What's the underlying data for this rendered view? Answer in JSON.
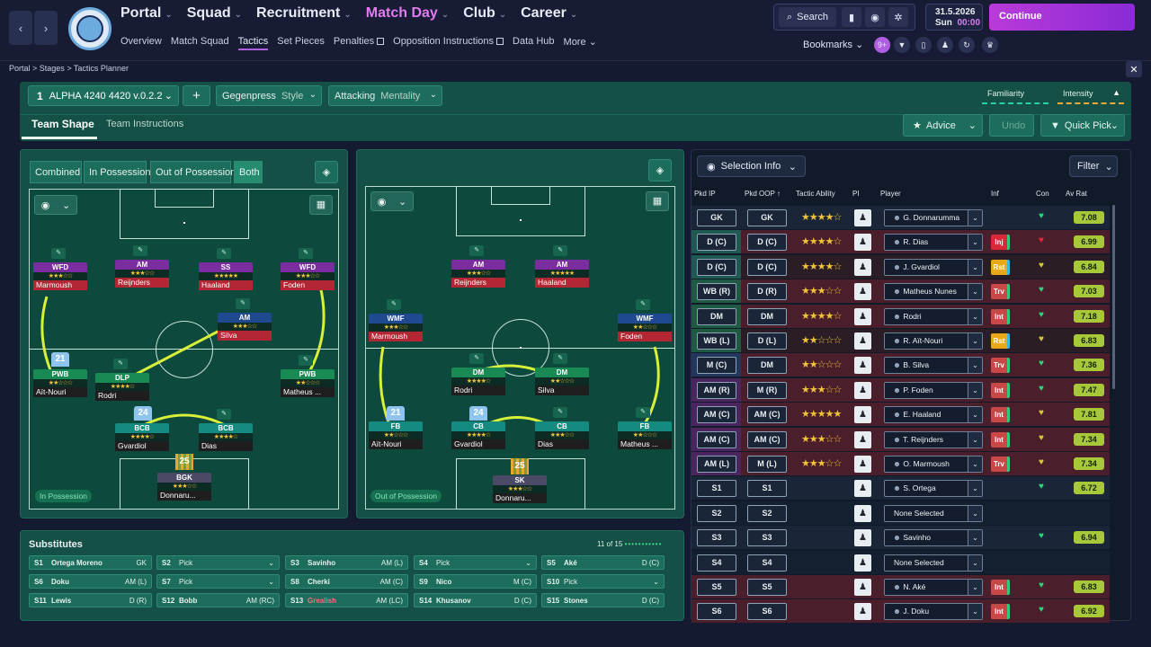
{
  "topbar": {
    "main_nav": [
      {
        "label": "Portal"
      },
      {
        "label": "Squad"
      },
      {
        "label": "Recruitment"
      },
      {
        "label": "Match Day"
      },
      {
        "label": "Club"
      },
      {
        "label": "Career"
      }
    ],
    "sub_nav": [
      "Overview",
      "Match Squad",
      "Tactics",
      "Set Pieces",
      "Penalties",
      "Opposition Instructions",
      "Data Hub",
      "More"
    ],
    "search_label": "Search",
    "date": "31.5.2026",
    "day": "Sun",
    "time": "00:00",
    "continue_label": "Continue",
    "bookmarks_label": "Bookmarks",
    "notif_count": "9+",
    "crest_text": "MANCHESTER CITY"
  },
  "breadcrumb": [
    "Portal",
    "Stages",
    "Tactics Planner"
  ],
  "planner": {
    "formation_num": "1",
    "formation_name": "ALPHA 4240 4420 v.0.2.2",
    "plus": "+",
    "style_value": "Gegenpress",
    "style_label": "Style",
    "mentality_value": "Attacking",
    "mentality_label": "Mentality",
    "familiarity_label": "Familiarity",
    "intensity_label": "Intensity",
    "tabs": [
      "Team Shape",
      "Team Instructions"
    ],
    "advice_label": "Advice",
    "undo_label": "Undo",
    "quick_pick_label": "Quick Pick"
  },
  "shape_modes": [
    "Combined",
    "In Possession",
    "Out of Possession",
    "Both"
  ],
  "in_possession": {
    "badge": "In Possession",
    "players": [
      {
        "role": "WFD",
        "stars": "★★★☆☆",
        "name": "Marmoush",
        "color": "#7b2c9f"
      },
      {
        "role": "AM",
        "stars": "★★★☆☆",
        "name": "Reijnders",
        "color": "#7b2c9f"
      },
      {
        "role": "SS",
        "stars": "★★★★★",
        "name": "Haaland",
        "color": "#7b2c9f"
      },
      {
        "role": "WFD",
        "stars": "★★★☆☆",
        "name": "Foden",
        "color": "#7b2c9f"
      },
      {
        "role": "AM",
        "stars": "★★★☆☆",
        "name": "Silva",
        "color": "#1f4a8f"
      },
      {
        "role": "PWB",
        "stars": "★★☆☆☆",
        "name": "Aït-Nouri",
        "color": "#1a8a55"
      },
      {
        "role": "DLP",
        "stars": "★★★★☆",
        "name": "Rodri",
        "color": "#1a8a55"
      },
      {
        "role": "PWB",
        "stars": "★★☆☆☆",
        "name": "Matheus ...",
        "color": "#1a8a55"
      },
      {
        "role": "BCB",
        "stars": "★★★★☆",
        "name": "Gvardiol",
        "color": "#148a80"
      },
      {
        "role": "BCB",
        "stars": "★★★★☆",
        "name": "Dias",
        "color": "#148a80"
      },
      {
        "role": "BGK",
        "stars": "★★★☆☆",
        "name": "Donnaru...",
        "color": "#4a4a66"
      }
    ],
    "shirts": [
      "21",
      "24",
      "25"
    ]
  },
  "out_possession": {
    "badge": "Out of Possession",
    "players": [
      {
        "role": "AM",
        "stars": "★★★☆☆",
        "name": "Reijnders",
        "color": "#7b2c9f"
      },
      {
        "role": "AM",
        "stars": "★★★★★",
        "name": "Haaland",
        "color": "#7b2c9f"
      },
      {
        "role": "WMF",
        "stars": "★★★☆☆",
        "name": "Marmoush",
        "color": "#1f4a8f"
      },
      {
        "role": "WMF",
        "stars": "★★☆☆☆",
        "name": "Foden",
        "color": "#1f4a8f"
      },
      {
        "role": "DM",
        "stars": "★★★★☆",
        "name": "Rodri",
        "color": "#1a8a55"
      },
      {
        "role": "DM",
        "stars": "★★☆☆☆",
        "name": "Silva",
        "color": "#1a8a55"
      },
      {
        "role": "FB",
        "stars": "★★☆☆☆",
        "name": "Aït-Nouri",
        "color": "#148a80"
      },
      {
        "role": "CB",
        "stars": "★★★★☆",
        "name": "Gvardiol",
        "color": "#148a80"
      },
      {
        "role": "CB",
        "stars": "★★★☆☆",
        "name": "Dias",
        "color": "#148a80"
      },
      {
        "role": "FB",
        "stars": "★★☆☆☆",
        "name": "Matheus ...",
        "color": "#148a80"
      },
      {
        "role": "SK",
        "stars": "★★★☆☆",
        "name": "Donnaru...",
        "color": "#4a4a66"
      }
    ],
    "shirts": [
      "21",
      "24",
      "25"
    ]
  },
  "substitutes": {
    "title": "Substitutes",
    "count": "11 of 15",
    "rows": [
      {
        "slot": "S1",
        "name": "Ortega Moreno",
        "pos": "GK"
      },
      {
        "slot": "S2",
        "name": "Pick",
        "pos": ""
      },
      {
        "slot": "S3",
        "name": "Savinho",
        "pos": "AM (L)"
      },
      {
        "slot": "S4",
        "name": "Pick",
        "pos": ""
      },
      {
        "slot": "S5",
        "name": "Aké",
        "pos": "D (C)"
      },
      {
        "slot": "S6",
        "name": "Doku",
        "pos": "AM (L)"
      },
      {
        "slot": "S7",
        "name": "Pick",
        "pos": ""
      },
      {
        "slot": "S8",
        "name": "Cherki",
        "pos": "AM (C)"
      },
      {
        "slot": "S9",
        "name": "Nico",
        "pos": "M (C)"
      },
      {
        "slot": "S10",
        "name": "Pick",
        "pos": ""
      },
      {
        "slot": "S11",
        "name": "Lewis",
        "pos": "D (R)"
      },
      {
        "slot": "S12",
        "name": "Bobb",
        "pos": "AM (RC)"
      },
      {
        "slot": "S13",
        "name": "Grealish",
        "pos": "AM (LC)"
      },
      {
        "slot": "S14",
        "name": "Khusanov",
        "pos": "D (C)"
      },
      {
        "slot": "S15",
        "name": "Stones",
        "pos": "D (C)"
      }
    ]
  },
  "selection": {
    "selection_info_label": "Selection Info",
    "filter_label": "Filter",
    "headers": [
      "Pkd IP",
      "Pkd OOP",
      "Tactic Ability",
      "PI",
      "Player",
      "Inf",
      "Con",
      "Av Rat"
    ],
    "rows": [
      {
        "ip": "GK",
        "oop": "GK",
        "stars": "★★★★☆",
        "player": "G. Donnarumma",
        "inf": "",
        "rat": "7.08",
        "band": "#1a2638",
        "ipcol": "#1a2638"
      },
      {
        "ip": "D (C)",
        "oop": "D (C)",
        "stars": "★★★★☆",
        "player": "R. Dias",
        "inf": "Inj",
        "rat": "6.99",
        "band": "#4a1e2a",
        "ipcol": "#1e5a52"
      },
      {
        "ip": "D (C)",
        "oop": "D (C)",
        "stars": "★★★★☆",
        "player": "J. Gvardiol",
        "inf": "Rst",
        "rat": "6.84",
        "band": "#2a1d26",
        "ipcol": "#1e5a52"
      },
      {
        "ip": "WB (R)",
        "oop": "D (R)",
        "stars": "★★★☆☆",
        "player": "Matheus Nunes",
        "inf": "Trv",
        "rat": "7.03",
        "band": "#4a1e2a",
        "ipcol": "#1e5a42"
      },
      {
        "ip": "DM",
        "oop": "DM",
        "stars": "★★★★☆",
        "player": "Rodri",
        "inf": "Int",
        "rat": "7.18",
        "band": "#4a1e2a",
        "ipcol": "#1e5a42"
      },
      {
        "ip": "WB (L)",
        "oop": "D (L)",
        "stars": "★★☆☆☆",
        "player": "R. Aït-Nouri",
        "inf": "Rst",
        "rat": "6.83",
        "band": "#2a1d26",
        "ipcol": "#1e5a42"
      },
      {
        "ip": "M (C)",
        "oop": "DM",
        "stars": "★★☆☆☆",
        "player": "B. Silva",
        "inf": "Trv",
        "rat": "7.36",
        "band": "#4a1e2a",
        "ipcol": "#23375e"
      },
      {
        "ip": "AM (R)",
        "oop": "M (R)",
        "stars": "★★★☆☆",
        "player": "P. Foden",
        "inf": "Int",
        "rat": "7.47",
        "band": "#4a1e2a",
        "ipcol": "#4a2560"
      },
      {
        "ip": "AM (C)",
        "oop": "AM (C)",
        "stars": "★★★★★",
        "player": "E. Haaland",
        "inf": "Int",
        "rat": "7.81",
        "band": "#4a1e2a",
        "ipcol": "#4a2560"
      },
      {
        "ip": "AM (C)",
        "oop": "AM (C)",
        "stars": "★★★☆☆",
        "player": "T. Reijnders",
        "inf": "Int",
        "rat": "7.34",
        "band": "#4a1e2a",
        "ipcol": "#4a2560"
      },
      {
        "ip": "AM (L)",
        "oop": "M (L)",
        "stars": "★★★☆☆",
        "player": "O. Marmoush",
        "inf": "Trv",
        "rat": "7.34",
        "band": "#4a1e2a",
        "ipcol": "#4a2560"
      },
      {
        "ip": "S1",
        "oop": "S1",
        "stars": "",
        "player": "S. Ortega",
        "inf": "",
        "rat": "6.72",
        "band": "#1a2638",
        "ipcol": "#1a2638"
      },
      {
        "ip": "S2",
        "oop": "S2",
        "stars": "",
        "player": "None Selected",
        "inf": "",
        "rat": "",
        "band": "#141f30",
        "ipcol": "#141f30"
      },
      {
        "ip": "S3",
        "oop": "S3",
        "stars": "",
        "player": "Savinho",
        "inf": "",
        "rat": "6.94",
        "band": "#1a2638",
        "ipcol": "#1a2638"
      },
      {
        "ip": "S4",
        "oop": "S4",
        "stars": "",
        "player": "None Selected",
        "inf": "",
        "rat": "",
        "band": "#141f30",
        "ipcol": "#141f30"
      },
      {
        "ip": "S5",
        "oop": "S5",
        "stars": "",
        "player": "N. Aké",
        "inf": "Int",
        "rat": "6.83",
        "band": "#4a1e2a",
        "ipcol": "#4a1e2a"
      },
      {
        "ip": "S6",
        "oop": "S6",
        "stars": "",
        "player": "J. Doku",
        "inf": "Int",
        "rat": "6.92",
        "band": "#4a1e2a",
        "ipcol": "#4a1e2a"
      }
    ]
  }
}
